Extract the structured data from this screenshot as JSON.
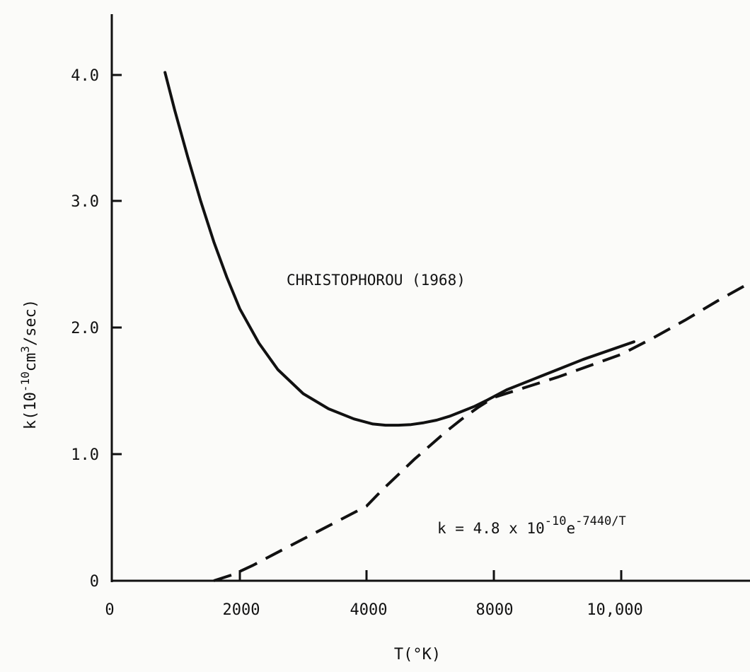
{
  "chart_data": {
    "type": "line",
    "xlabel": "T(°K)",
    "ylabel": {
      "base": "k(10",
      "exp1": "-10",
      "mid": "cm",
      "exp2": "3",
      "tail": "/sec)"
    },
    "x_ticks": [
      "0",
      "2000",
      "4000",
      "8000",
      "10,000"
    ],
    "y_ticks": [
      "0",
      "1.0",
      "2.0",
      "3.0",
      "4.0"
    ],
    "y_tick_values": [
      0,
      1.0,
      2.0,
      3.0,
      4.0
    ],
    "ylim": [
      0,
      4.0
    ],
    "grid": false,
    "series": [
      {
        "name": "CHRISTOPHOROU (1968)",
        "style": "solid",
        "x": [
          850,
          1000,
          1200,
          1400,
          1600,
          1800,
          2000,
          2300,
          2600,
          3000,
          3400,
          3800,
          4200,
          4600,
          5000,
          5400,
          5800,
          6200,
          6600,
          7000,
          7400,
          7800,
          8200,
          8600,
          9000,
          9400,
          9800,
          10200
        ],
        "y": [
          4.02,
          3.72,
          3.35,
          3.0,
          2.68,
          2.4,
          2.15,
          1.88,
          1.67,
          1.48,
          1.36,
          1.28,
          1.24,
          1.23,
          1.23,
          1.235,
          1.25,
          1.27,
          1.3,
          1.34,
          1.38,
          1.43,
          1.51,
          1.59,
          1.67,
          1.75,
          1.82,
          1.89
        ]
      },
      {
        "name": "k = 4.8 x 10-10e-7440/T",
        "style": "dashed",
        "x": [
          1600,
          1900,
          2200,
          2500,
          3000,
          3500,
          4000,
          4500,
          5000,
          5500,
          6000,
          6500,
          7000,
          7500,
          8000,
          8500,
          9000,
          9500,
          10000,
          10500,
          11000,
          11500,
          12000
        ],
        "y": [
          0.0,
          0.05,
          0.12,
          0.2,
          0.33,
          0.46,
          0.59,
          0.72,
          0.84,
          0.96,
          1.07,
          1.18,
          1.28,
          1.37,
          1.45,
          1.53,
          1.61,
          1.7,
          1.79,
          1.92,
          2.06,
          2.21,
          2.35
        ]
      }
    ],
    "annotations": {
      "curve_label": "CHRISTOPHOROU (1968)",
      "formula": {
        "prefix": "k = 4.8 x 10",
        "exp1": "-10",
        "mid": "e",
        "exp2": "-7440/T"
      }
    }
  }
}
